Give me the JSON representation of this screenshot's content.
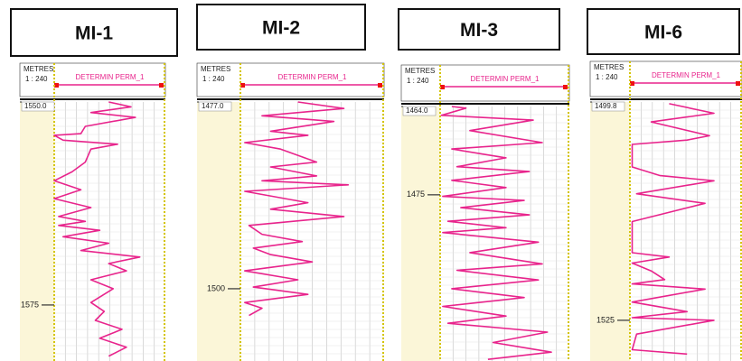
{
  "chart_data": [
    {
      "type": "line",
      "title": "MI-1",
      "depth_label": "METRES",
      "scale": "1 : 240",
      "curve_name": "DETERMIN PERM_1",
      "color": "#e8248c",
      "xlim": [
        1550,
        1581.9
      ],
      "xticks": [
        {
          "value": 1550,
          "label": "1550.0"
        },
        1575
      ],
      "ylim": [
        0,
        100
      ],
      "x": [
        1550,
        1550.6,
        1551.3,
        1551.9,
        1553,
        1553.9,
        1554.1,
        1554.7,
        1555.2,
        1555.8,
        1557.4,
        1558.6,
        1559.7,
        1560.8,
        1561.9,
        1563,
        1564.1,
        1564.7,
        1565.2,
        1565.8,
        1566.6,
        1567.4,
        1568.3,
        1569.1,
        1569.9,
        1570.8,
        1571.9,
        1573,
        1574.7,
        1575.8,
        1576.9,
        1578,
        1579.1,
        1580.2,
        1581.3
      ],
      "values": [
        49,
        69,
        33,
        73,
        28,
        24,
        0,
        8,
        57,
        33,
        28,
        16,
        0,
        24,
        0,
        33,
        4,
        28,
        4,
        41,
        8,
        49,
        24,
        77,
        49,
        65,
        33,
        53,
        33,
        45,
        37,
        61,
        41,
        65,
        49
      ]
    },
    {
      "type": "line",
      "title": "MI-2",
      "depth_label": "METRES",
      "scale": "1 : 240",
      "curve_name": "DETERMIN PERM_1",
      "color": "#e8248c",
      "xlim": [
        1477,
        1508.9
      ],
      "xticks": [
        {
          "value": 1477,
          "label": "1477.0"
        },
        1500
      ],
      "ylim": [
        0,
        100
      ],
      "x": [
        1477,
        1477.8,
        1478.7,
        1479.4,
        1480.6,
        1481.1,
        1482,
        1482.8,
        1484.4,
        1485,
        1486.1,
        1486.7,
        1487.2,
        1488,
        1489.4,
        1490.2,
        1491.1,
        1492.2,
        1493.3,
        1494.2,
        1495,
        1495.8,
        1496.7,
        1497.8,
        1498.9,
        1499.8,
        1500.7,
        1501.7,
        1502.4,
        1503.3
      ],
      "values": [
        40,
        72,
        15,
        65,
        21,
        47,
        3,
        28,
        53,
        21,
        53,
        15,
        75,
        3,
        47,
        21,
        72,
        6,
        15,
        43,
        9,
        21,
        50,
        3,
        40,
        9,
        47,
        3,
        15,
        6
      ]
    },
    {
      "type": "line",
      "title": "MI-3",
      "depth_label": "METRES",
      "scale": "1 : 240",
      "curve_name": "DETERMIN PERM_1",
      "color": "#e8248c",
      "xlim": [
        1464,
        1495.7
      ],
      "xticks": [
        {
          "value": 1464,
          "label": "1464.0"
        },
        1475
      ],
      "ylim": [
        0,
        100
      ],
      "x": [
        1464,
        1464.2,
        1465.1,
        1465.7,
        1467,
        1468.5,
        1469.3,
        1470.4,
        1471.5,
        1472.1,
        1473.2,
        1474.1,
        1475.2,
        1475.7,
        1476.6,
        1477.5,
        1478.3,
        1479.1,
        1479.7,
        1480.9,
        1482.2,
        1483.6,
        1484.4,
        1485.6,
        1486.7,
        1487.8,
        1488.9,
        1490.1,
        1491,
        1492.1,
        1493.4,
        1494.6,
        1495.5
      ],
      "values": [
        9,
        20,
        1,
        72,
        23,
        79,
        9,
        51,
        13,
        69,
        9,
        51,
        2,
        65,
        16,
        69,
        6,
        51,
        2,
        76,
        23,
        79,
        13,
        76,
        9,
        65,
        2,
        51,
        6,
        83,
        41,
        86,
        37
      ]
    },
    {
      "type": "line",
      "title": "MI-6",
      "depth_label": "METRES",
      "scale": "1 : 240",
      "curve_name": "DETERMIN PERM_1",
      "color": "#e8248c",
      "xlim": [
        1499.8,
        1529.7
      ],
      "xticks": [
        {
          "value": 1499.8,
          "label": "1499.8"
        },
        1525
      ],
      "ylim": [
        0,
        100
      ],
      "x": [
        1500,
        1501.1,
        1502.1,
        1503.7,
        1504.2,
        1504.7,
        1506.3,
        1507.3,
        1508.3,
        1508.9,
        1510.4,
        1511.5,
        1513.6,
        1517.2,
        1517.7,
        1518.4,
        1519.3,
        1520.3,
        1520.8,
        1521.4,
        1522.9,
        1524,
        1524.7,
        1525,
        1526.6,
        1528.4,
        1528.9
      ],
      "values": [
        35,
        75,
        19,
        71,
        51,
        2,
        2,
        2,
        27,
        75,
        6,
        67,
        2,
        2,
        35,
        2,
        19,
        31,
        2,
        67,
        2,
        51,
        2,
        75,
        6,
        2,
        51
      ]
    }
  ]
}
